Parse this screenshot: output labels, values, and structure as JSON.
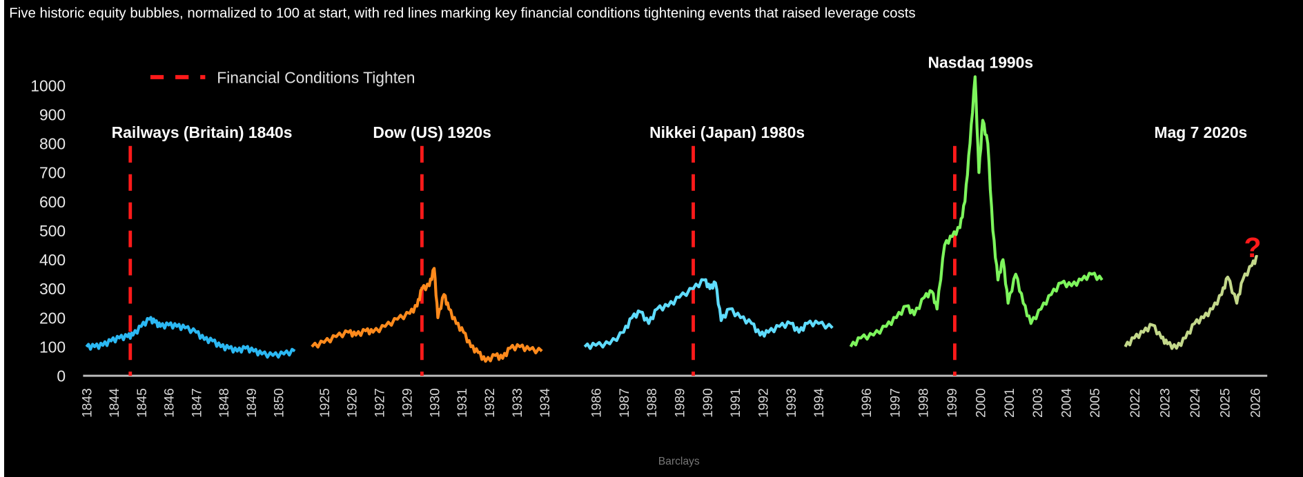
{
  "chart_data": {
    "type": "line",
    "title": "Five historic equity bubbles, normalized to 100 at start, with red lines marking key financial conditions tightening events that raised leverage costs",
    "ylabel": "",
    "ylim": [
      0,
      1000
    ],
    "yticks": [
      "0",
      "100",
      "200",
      "300",
      "400",
      "500",
      "600",
      "700",
      "800",
      "900",
      "1000"
    ],
    "legend": {
      "label": "Financial Conditions Tighten",
      "color": "#ff1a1a",
      "style": "dashed",
      "placement": "top-left"
    },
    "source": "Barclays",
    "annotation": "?",
    "grid": false,
    "panels": [
      {
        "name": "Railways (Britain) 1840s",
        "color": "#2bb8f3",
        "ticks": [
          "1843",
          "1844",
          "1845",
          "1846",
          "1847",
          "1848",
          "1849",
          "1850"
        ],
        "tighten_year": 1844.6,
        "x": [
          1843.0,
          1843.3,
          1843.6,
          1843.9,
          1844.2,
          1844.5,
          1844.7,
          1845.0,
          1845.3,
          1845.5,
          1845.7,
          1846.0,
          1846.3,
          1846.6,
          1847.0,
          1847.3,
          1847.6,
          1847.9,
          1848.2,
          1848.5,
          1848.8,
          1849.1,
          1849.4,
          1849.8,
          1850.2,
          1850.6
        ],
        "y": [
          100,
          100,
          105,
          120,
          130,
          135,
          140,
          170,
          195,
          185,
          170,
          175,
          170,
          165,
          150,
          125,
          120,
          100,
          95,
          85,
          95,
          85,
          75,
          70,
          75,
          85
        ]
      },
      {
        "name": "Dow (US) 1920s",
        "color": "#ff8a1c",
        "ticks": [
          "1925",
          "1926",
          "1927",
          "1929",
          "1930",
          "1931",
          "1932",
          "1933",
          "1934"
        ],
        "tighten_year": 1929.0,
        "x": [
          1924.5,
          1925.0,
          1925.5,
          1926.0,
          1926.3,
          1926.7,
          1927.0,
          1927.5,
          1928.0,
          1928.5,
          1928.8,
          1929.0,
          1929.3,
          1929.5,
          1929.65,
          1929.9,
          1930.1,
          1930.4,
          1930.7,
          1931.0,
          1931.3,
          1931.6,
          1932.0,
          1932.3,
          1932.6,
          1933.0,
          1933.4,
          1933.9
        ],
        "y": [
          100,
          115,
          135,
          150,
          140,
          155,
          150,
          170,
          195,
          215,
          240,
          300,
          310,
          370,
          200,
          280,
          230,
          180,
          150,
          100,
          80,
          50,
          70,
          60,
          95,
          100,
          90,
          85
        ]
      },
      {
        "name": "Nikkei (Japan) 1980s",
        "color": "#5fdcff",
        "ticks": [
          "1986",
          "1987",
          "1988",
          "1989",
          "1990",
          "1991",
          "1992",
          "1993",
          "1994"
        ],
        "tighten_year": 1989.5,
        "x": [
          1985.6,
          1986.0,
          1986.5,
          1987.0,
          1987.3,
          1987.6,
          1987.9,
          1988.2,
          1988.6,
          1989.0,
          1989.5,
          1989.9,
          1990.1,
          1990.3,
          1990.5,
          1990.8,
          1991.2,
          1991.6,
          1991.9,
          1992.2,
          1992.6,
          1993.0,
          1993.3,
          1993.6,
          1994.0,
          1994.5
        ],
        "y": [
          100,
          105,
          110,
          150,
          200,
          220,
          180,
          230,
          240,
          270,
          300,
          330,
          300,
          320,
          190,
          230,
          200,
          180,
          140,
          150,
          170,
          180,
          150,
          180,
          180,
          165
        ]
      },
      {
        "name": "Nasdaq 1990s",
        "color": "#7df55c",
        "ticks": [
          "1996",
          "1997",
          "1998",
          "1999",
          "2000",
          "2001",
          "2003",
          "2004",
          "2005"
        ],
        "tighten_year": 1999.5,
        "x": [
          1995.4,
          1995.8,
          1996.3,
          1996.8,
          1997.2,
          1997.6,
          1997.9,
          1998.3,
          1998.6,
          1998.8,
          1999.1,
          1999.4,
          1999.7,
          1999.9,
          2000.1,
          2000.3,
          2000.45,
          2000.6,
          2000.8,
          2001.0,
          2001.2,
          2001.4,
          2001.6,
          2001.9,
          2002.2,
          2002.5,
          2002.9,
          2003.3,
          2003.7,
          2004.1,
          2004.5,
          2004.9,
          2005.3
        ],
        "y": [
          100,
          130,
          140,
          170,
          200,
          240,
          210,
          270,
          290,
          230,
          450,
          480,
          510,
          600,
          800,
          1030,
          700,
          880,
          800,
          500,
          330,
          400,
          250,
          350,
          250,
          180,
          230,
          280,
          320,
          310,
          330,
          350,
          330
        ]
      },
      {
        "name": "Mag 7 2020s",
        "color": "#c3d88a",
        "ticks": [
          "2022",
          "2023",
          "2024",
          "2025",
          "2026"
        ],
        "tighten_year": null,
        "x": [
          2021.7,
          2022.0,
          2022.3,
          2022.6,
          2022.9,
          2023.1,
          2023.4,
          2023.7,
          2024.0,
          2024.3,
          2024.6,
          2024.9,
          2025.1,
          2025.4,
          2025.6,
          2025.9,
          2026.1
        ],
        "y": [
          100,
          130,
          150,
          175,
          130,
          110,
          95,
          130,
          180,
          200,
          230,
          280,
          340,
          250,
          330,
          380,
          410
        ]
      }
    ]
  }
}
